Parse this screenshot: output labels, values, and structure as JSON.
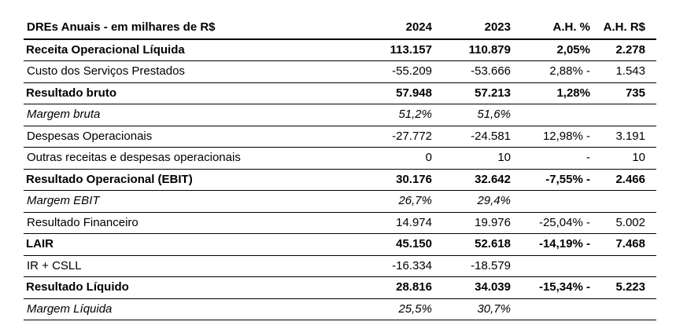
{
  "header": {
    "label": "DREs Anuais - em milhares de R$",
    "col_2024": "2024",
    "col_2023": "2023",
    "col_ah_pct": "A.H. %",
    "col_ah_rs": "A.H. R$"
  },
  "rows": [
    {
      "label": "Receita Operacional Líquida",
      "v2024": "113.157",
      "v2023": "110.879",
      "ah_pct": "2,05%",
      "ah_rs": "2.278"
    },
    {
      "label": "Custo dos Serviços Prestados",
      "v2024": "-55.209",
      "v2023": "-53.666",
      "ah_pct": "2,88% -",
      "ah_rs": "1.543"
    },
    {
      "label": "Resultado bruto",
      "v2024": "57.948",
      "v2023": "57.213",
      "ah_pct": "1,28%",
      "ah_rs": "735"
    },
    {
      "label": "Margem bruta",
      "v2024": "51,2%",
      "v2023": "51,6%",
      "ah_pct": "",
      "ah_rs": ""
    },
    {
      "label": "Despesas Operacionais",
      "v2024": "-27.772",
      "v2023": "-24.581",
      "ah_pct": "12,98% -",
      "ah_rs": "3.191"
    },
    {
      "label": "Outras receitas e despesas operacionais",
      "v2024": "0",
      "v2023": "10",
      "ah_pct": "-",
      "ah_rs": "10"
    },
    {
      "label": "Resultado Operacional (EBIT)",
      "v2024": "30.176",
      "v2023": "32.642",
      "ah_pct": "-7,55% -",
      "ah_rs": "2.466"
    },
    {
      "label": "Margem EBIT",
      "v2024": "26,7%",
      "v2023": "29,4%",
      "ah_pct": "",
      "ah_rs": ""
    },
    {
      "label": "Resultado Financeiro",
      "v2024": "14.974",
      "v2023": "19.976",
      "ah_pct": "-25,04% -",
      "ah_rs": "5.002"
    },
    {
      "label": "LAIR",
      "v2024": "45.150",
      "v2023": "52.618",
      "ah_pct": "-14,19% -",
      "ah_rs": "7.468"
    },
    {
      "label": "IR + CSLL",
      "v2024": "-16.334",
      "v2023": "-18.579",
      "ah_pct": "",
      "ah_rs": ""
    },
    {
      "label": "Resultado Líquido",
      "v2024": "28.816",
      "v2023": "34.039",
      "ah_pct": "-15,34% -",
      "ah_rs": "5.223"
    },
    {
      "label": "Margem Líquida",
      "v2024": "25,5%",
      "v2023": "30,7%",
      "ah_pct": "",
      "ah_rs": ""
    }
  ]
}
